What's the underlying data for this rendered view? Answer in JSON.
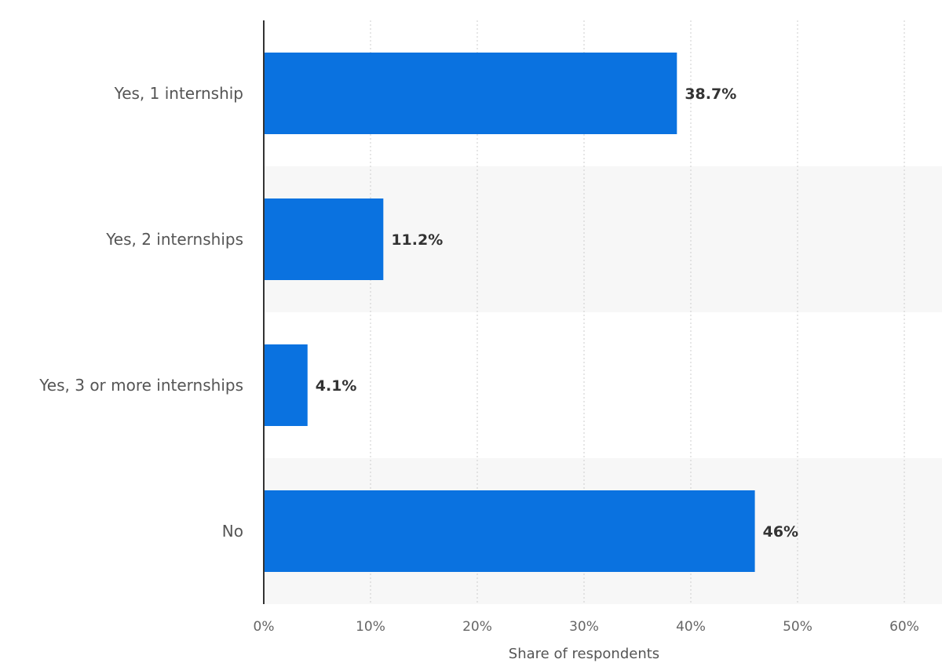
{
  "chart_data": {
    "type": "bar",
    "orientation": "horizontal",
    "categories": [
      "Yes, 1 internship",
      "Yes, 2 internships",
      "Yes, 3 or more internships",
      "No"
    ],
    "values": [
      38.7,
      11.2,
      4.1,
      46
    ],
    "value_labels": [
      "38.7%",
      "11.2%",
      "4.1%",
      "46%"
    ],
    "xlabel": "Share of respondents",
    "ylabel": "",
    "xlim": [
      0,
      60
    ],
    "ticks": [
      0,
      10,
      20,
      30,
      40,
      50,
      60
    ],
    "tick_labels": [
      "0%",
      "10%",
      "20%",
      "30%",
      "40%",
      "50%",
      "60%"
    ],
    "grid": "vertical dotted",
    "legend": "none"
  },
  "colors": {
    "bar": "#0a72e0",
    "band": "#f7f7f7",
    "axis": "#333333",
    "grid": "#cccccc"
  }
}
